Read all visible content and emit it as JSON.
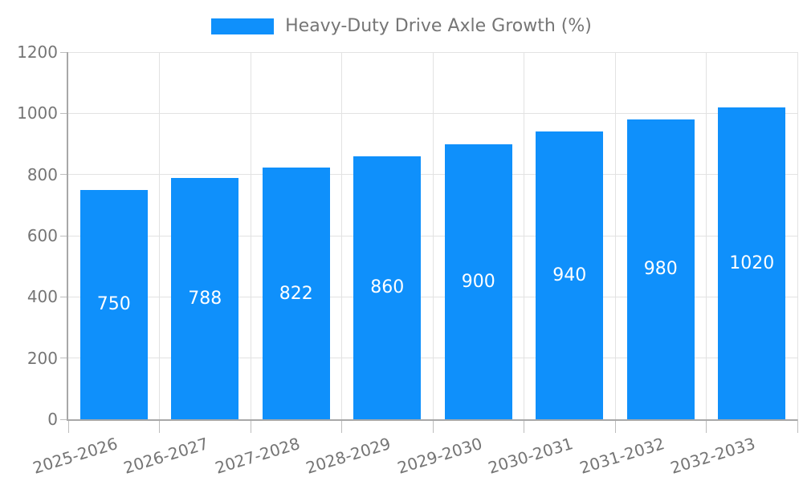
{
  "legend": {
    "label": "Heavy-Duty Drive Axle Growth (%)"
  },
  "chart_data": {
    "type": "bar",
    "title": "Heavy-Duty Drive Axle Growth (%)",
    "categories": [
      "2025-2026",
      "2026-2027",
      "2027-2028",
      "2028-2029",
      "2029-2030",
      "2030-2031",
      "2031-2032",
      "2032-2033"
    ],
    "values": [
      750,
      788,
      822,
      860,
      900,
      940,
      980,
      1020
    ],
    "xlabel": "",
    "ylabel": "",
    "ylim": [
      0,
      1200
    ],
    "yticks": [
      0,
      200,
      400,
      600,
      800,
      1000,
      1200
    ],
    "grid": true,
    "legend_position": "top-center",
    "value_labels": "centered-inside-bars"
  },
  "colors": {
    "bar": "#0f90fb",
    "value_label": "#ffffff",
    "grid": "#e2e2e2",
    "axis": "#a8a8a8",
    "tick": "#bdbdbd",
    "text": "#757575"
  }
}
